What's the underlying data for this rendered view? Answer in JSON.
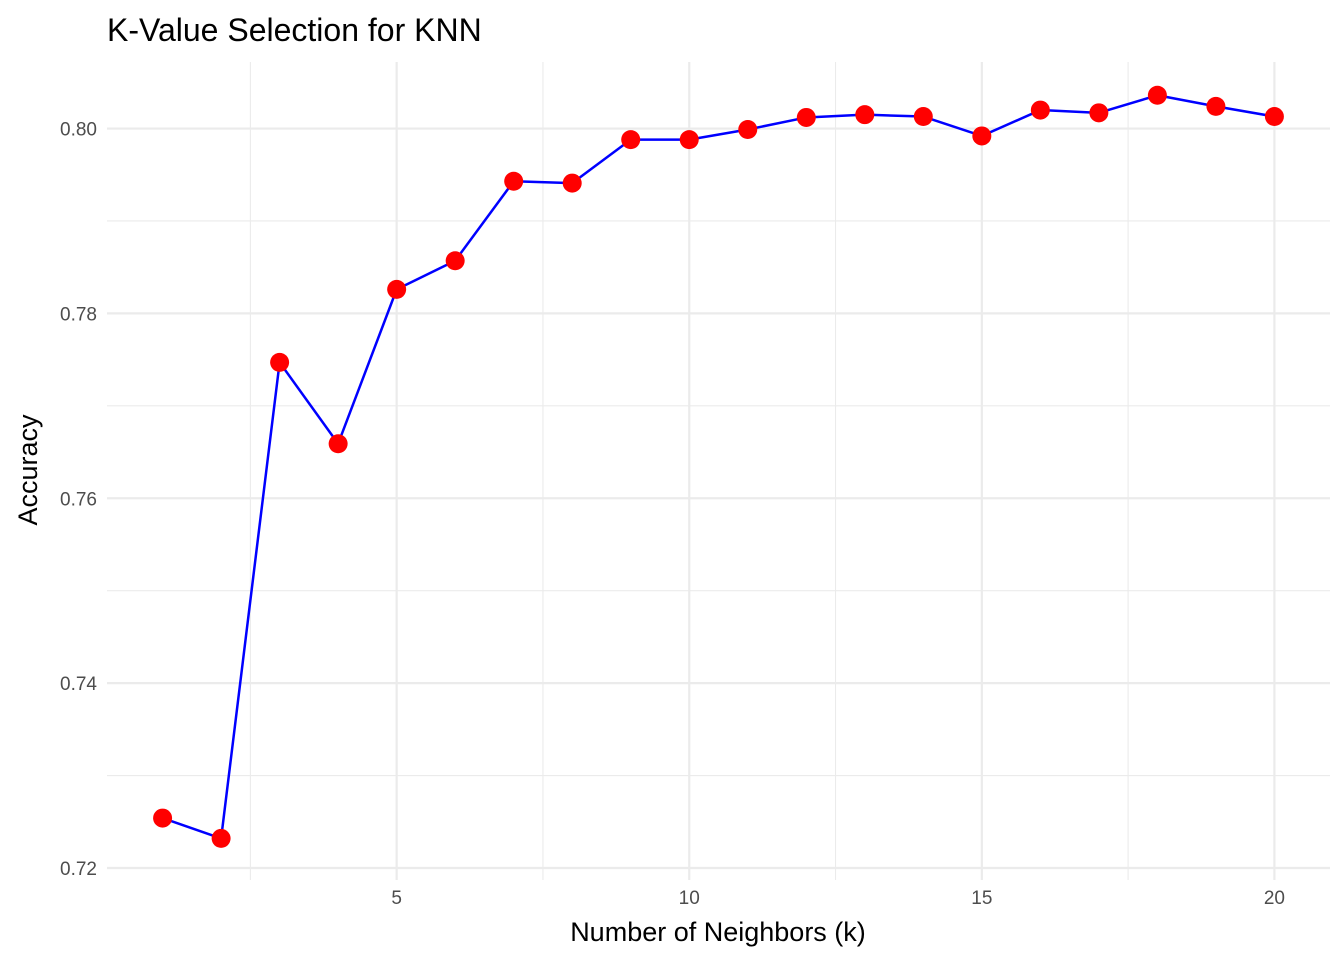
{
  "chart_data": {
    "type": "line",
    "title": "K-Value Selection for KNN",
    "xlabel": "Number of Neighbors (k)",
    "ylabel": "Accuracy",
    "xlim": [
      0.05,
      20.95
    ],
    "ylim": [
      0.7187,
      0.8072
    ],
    "x_ticks": [
      5,
      10,
      15,
      20
    ],
    "x_tick_labels": [
      "5",
      "10",
      "15",
      "20"
    ],
    "x_minor_ticks": [
      2.5,
      7.5,
      12.5,
      17.5
    ],
    "y_ticks": [
      0.72,
      0.74,
      0.76,
      0.78,
      0.8
    ],
    "y_tick_labels": [
      "0.72",
      "0.74",
      "0.76",
      "0.78",
      "0.80"
    ],
    "y_minor_ticks": [
      0.73,
      0.75,
      0.77,
      0.79
    ],
    "grid": true,
    "line_color": "#0000ff",
    "point_color": "#ff0000",
    "series": [
      {
        "x": [
          1,
          2,
          3,
          4,
          5,
          6,
          7,
          8,
          9,
          10,
          11,
          12,
          13,
          14,
          15,
          16,
          17,
          18,
          19,
          20
        ],
        "values": [
          0.7254,
          0.7232,
          0.7747,
          0.7659,
          0.7826,
          0.7857,
          0.7943,
          0.7941,
          0.7988,
          0.7988,
          0.7999,
          0.8012,
          0.8015,
          0.8013,
          0.7992,
          0.802,
          0.8017,
          0.8036,
          0.8024,
          0.8013
        ]
      }
    ]
  }
}
